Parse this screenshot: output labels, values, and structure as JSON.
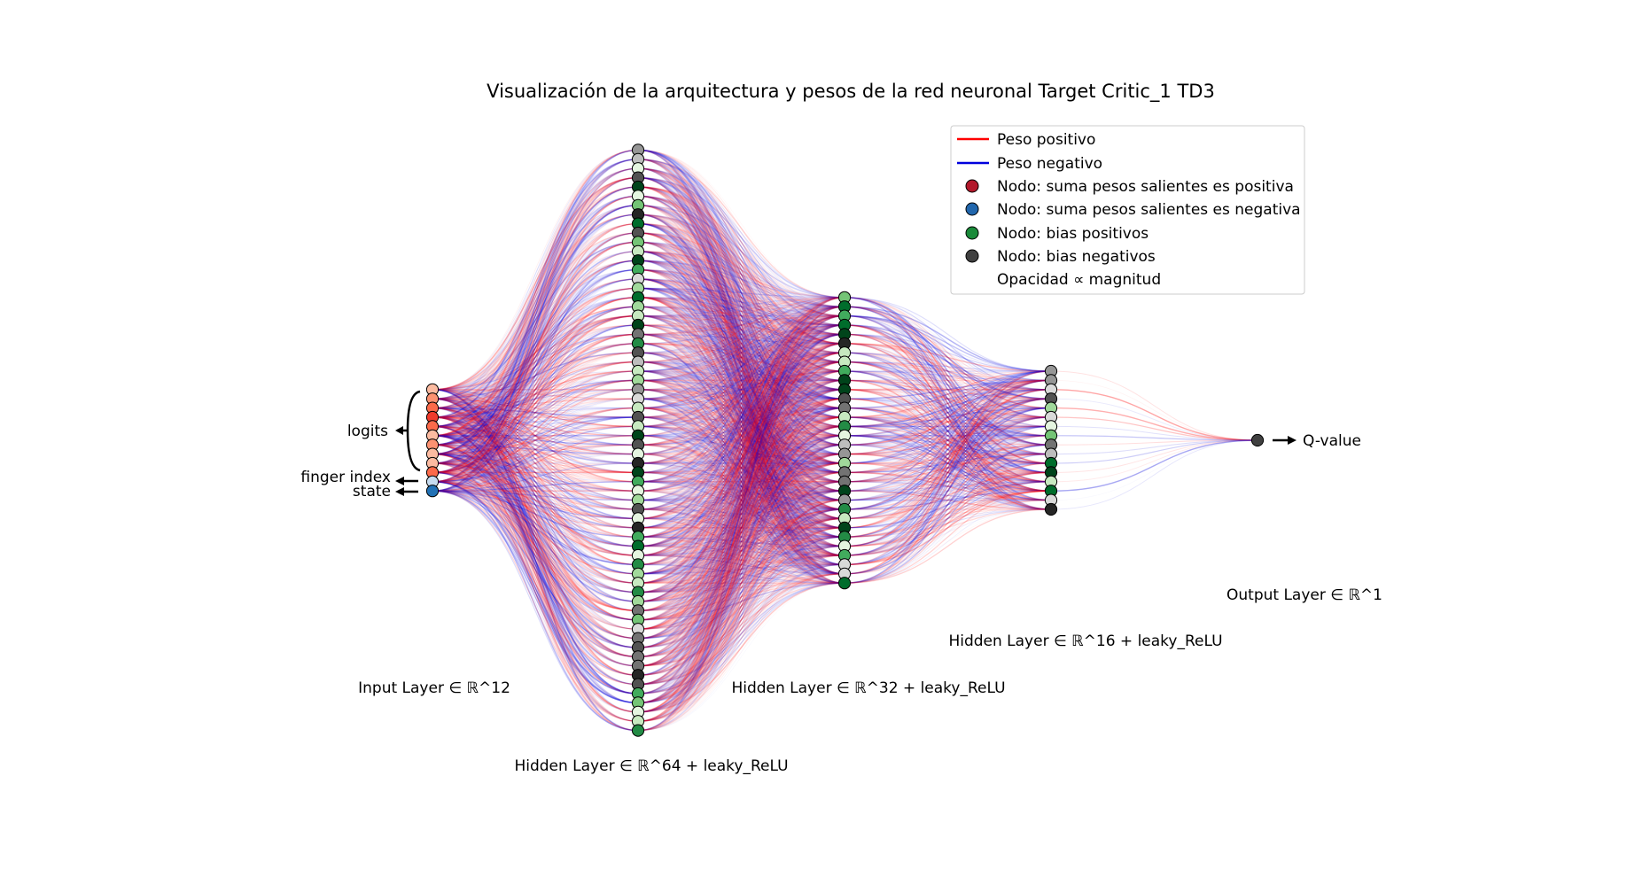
{
  "title": "Visualización de la arquitectura y pesos de la red neuronal Target Critic_1 TD3",
  "layers": [
    {
      "id": "input",
      "label": "Input Layer ∈ ℝ^12",
      "size": 12
    },
    {
      "id": "hidden1",
      "label": "Hidden Layer ∈ ℝ^64 + leaky_ReLU",
      "size": 64
    },
    {
      "id": "hidden2",
      "label": "Hidden Layer ∈ ℝ^32 + leaky_ReLU",
      "size": 32
    },
    {
      "id": "hidden3",
      "label": "Hidden Layer ∈ ℝ^16 + leaky_ReLU",
      "size": 16
    },
    {
      "id": "output",
      "label": "Output Layer ∈ ℝ^1",
      "size": 1
    }
  ],
  "input_groups": {
    "logits": "logits",
    "finger_index": "finger index",
    "state": "state"
  },
  "output_label": "Q-value",
  "legend": {
    "placement": "top-right",
    "items": [
      {
        "label": "Peso positivo",
        "marker": "line",
        "color": "#ff0000"
      },
      {
        "label": "Peso negativo",
        "marker": "line",
        "color": "#0000dd"
      },
      {
        "label": "Nodo: suma pesos salientes es positiva",
        "marker": "dot",
        "color": "#b2182b"
      },
      {
        "label": "Nodo: suma pesos salientes es negativa",
        "marker": "dot",
        "color": "#2166ac"
      },
      {
        "label": "Nodo: bias positivos",
        "marker": "dot",
        "color": "#1a8a3a"
      },
      {
        "label": "Nodo: bias negativos",
        "marker": "dot",
        "color": "#404040"
      },
      {
        "label": "Opacidad ∝ magnitud",
        "marker": "none",
        "color": ""
      }
    ]
  },
  "colors": {
    "positive_weight": "#ff0000",
    "negative_weight": "#0000dd",
    "input_nodes": [
      "#fcbba1",
      "#fc9272",
      "#fb6a4a",
      "#ef3b2c",
      "#fb6a4a",
      "#fcbba1",
      "#fc9272",
      "#fcbba1",
      "#fcbba1",
      "#fb6a4a",
      "#c6dbef",
      "#2171b5"
    ],
    "output_node": "#404040"
  }
}
